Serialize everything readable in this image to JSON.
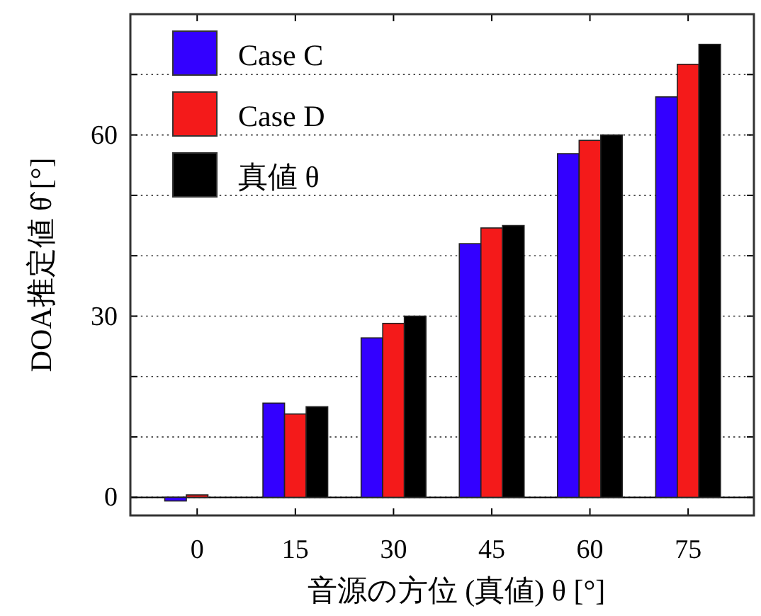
{
  "chart_data": {
    "type": "bar",
    "categories": [
      "0",
      "15",
      "30",
      "45",
      "60",
      "75"
    ],
    "series": [
      {
        "name": "Case C",
        "color": "#3300ff",
        "values": [
          -0.6,
          15.6,
          26.4,
          42.0,
          56.9,
          66.3
        ]
      },
      {
        "name": "Case D",
        "color": "#f41a1a",
        "values": [
          0.4,
          13.8,
          28.8,
          44.6,
          59.1,
          71.7
        ]
      },
      {
        "name": "真値 θ",
        "color": "#000000",
        "values": [
          0,
          15,
          30,
          45,
          60,
          75
        ]
      }
    ],
    "xlabel": "音源の方位 (真値) θ [°]",
    "ylabel": "DOA推定値 θ̂ [°]",
    "ylim": [
      -3,
      80
    ],
    "yticks": [
      0,
      {
        "value": 10,
        "label": null
      },
      {
        "value": 20,
        "label": null
      },
      30,
      {
        "value": 40,
        "label": null
      },
      {
        "value": 50,
        "label": null
      },
      60,
      {
        "value": 70,
        "label": null
      }
    ],
    "grid": "y",
    "legend": "top left"
  }
}
